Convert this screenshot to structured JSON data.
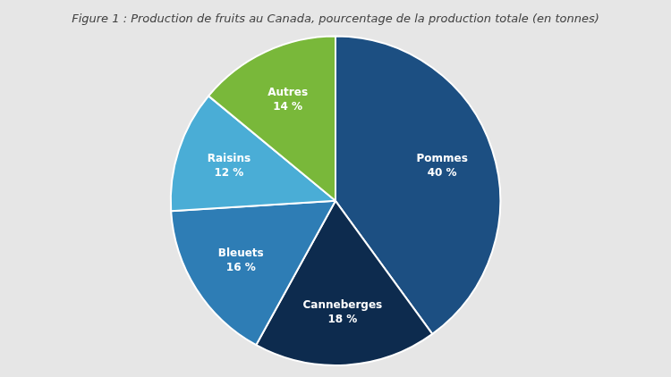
{
  "chart_data": {
    "type": "pie",
    "title": "Figure 1 : Production de fruits au Canada, pourcentage de la production totale (en tonnes)",
    "categories": [
      "Pommes",
      "Canneberges",
      "Bleuets",
      "Raisins",
      "Autres"
    ],
    "values": [
      40,
      18,
      16,
      12,
      14
    ],
    "value_labels": [
      "40 %",
      "18 %",
      "16 %",
      "12 %",
      "14 %"
    ],
    "colors": [
      "#1c4f82",
      "#0d2b4e",
      "#2e7db5",
      "#4aadd6",
      "#79b83a"
    ],
    "data_labels": true
  }
}
